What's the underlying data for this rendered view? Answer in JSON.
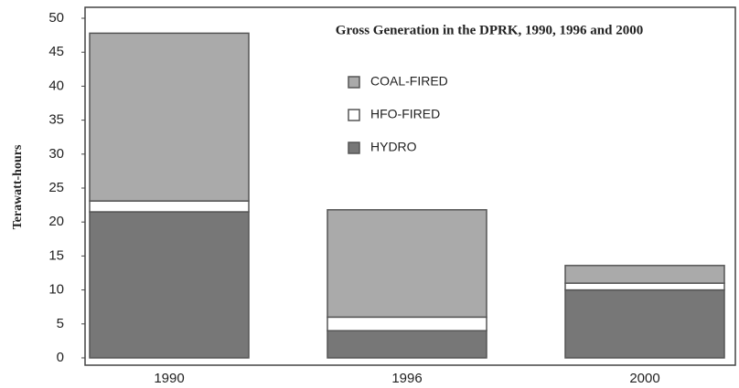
{
  "chart_data": {
    "type": "bar",
    "stacked": true,
    "title": "Gross Generation in the DPRK, 1990, 1996 and 2000",
    "y_label": "Terawatt-hours",
    "categories": [
      "1990",
      "1996",
      "2000"
    ],
    "series": [
      {
        "name": "HYDRO",
        "color": "#777777",
        "values": [
          21.5,
          4,
          10
        ]
      },
      {
        "name": "HFO-FIRED",
        "color": "#ffffff",
        "values": [
          1.6,
          2,
          1
        ]
      },
      {
        "name": "COAL-FIRED",
        "color": "#aaaaaa",
        "values": [
          24.7,
          15.8,
          2.6
        ]
      }
    ],
    "ylim": [
      0,
      50
    ],
    "yticks": [
      0,
      5,
      10,
      15,
      20,
      25,
      30,
      35,
      40,
      45,
      50
    ],
    "grid": false
  }
}
